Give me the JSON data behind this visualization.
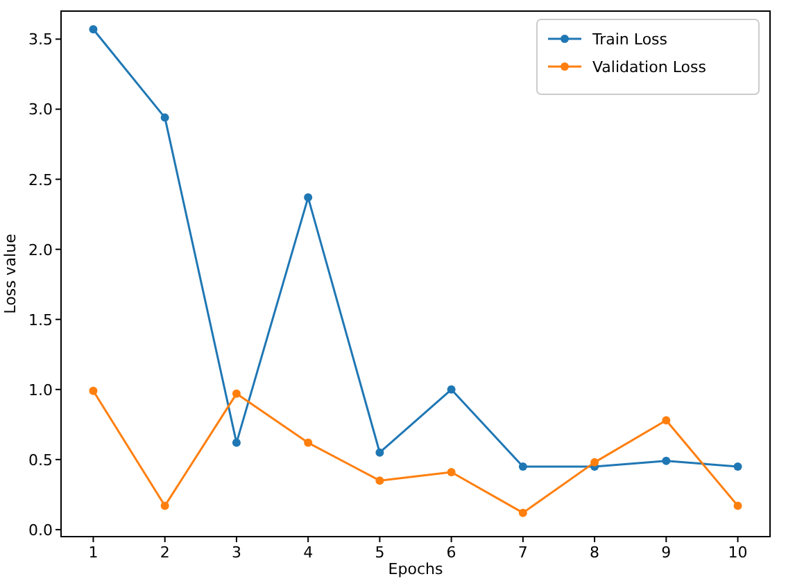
{
  "chart_data": {
    "type": "line",
    "xlabel": "Epochs",
    "ylabel": "Loss value",
    "x": [
      1,
      2,
      3,
      4,
      5,
      6,
      7,
      8,
      9,
      10
    ],
    "series": [
      {
        "name": "Train Loss",
        "color": "#1f77b4",
        "values": [
          3.57,
          2.94,
          0.62,
          2.37,
          0.55,
          1.0,
          0.45,
          0.45,
          0.49,
          0.45
        ]
      },
      {
        "name": "Validation Loss",
        "color": "#ff7f0e",
        "values": [
          0.99,
          0.17,
          0.97,
          0.62,
          0.35,
          0.41,
          0.12,
          0.48,
          0.78,
          0.17
        ]
      }
    ],
    "xlim": [
      0.55,
      10.45
    ],
    "xticks": [
      1,
      2,
      3,
      4,
      5,
      6,
      7,
      8,
      9,
      10
    ],
    "ylim": [
      -0.05,
      3.7
    ],
    "yticks": [
      {
        "value": 0,
        "label": "0.0"
      },
      {
        "value": 0.5,
        "label": "0.5"
      },
      {
        "value": 1,
        "label": "1.0"
      },
      {
        "value": 1.5,
        "label": "1.5"
      },
      {
        "value": 2,
        "label": "2.0"
      },
      {
        "value": 2.5,
        "label": "2.5"
      },
      {
        "value": 3,
        "label": "3.0"
      },
      {
        "value": 3.5,
        "label": "3.5"
      }
    ],
    "marker": "circle",
    "line_style": "solid",
    "grid": false,
    "legend": "top right"
  }
}
